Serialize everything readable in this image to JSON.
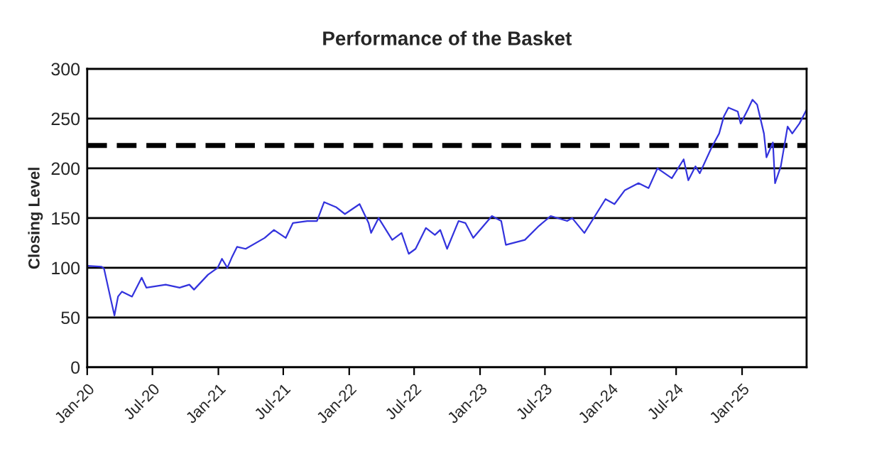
{
  "chart_data": {
    "type": "line",
    "title": "Performance of the Basket",
    "ylabel": "Closing Level",
    "xlim": [
      "2020-01-01",
      "2025-06-30"
    ],
    "xticks": [
      {
        "value": "2020-01-01",
        "label": "Jan-20"
      },
      {
        "value": "2020-07-01",
        "label": "Jul-20"
      },
      {
        "value": "2021-01-01",
        "label": "Jan-21"
      },
      {
        "value": "2021-07-01",
        "label": "Jul-21"
      },
      {
        "value": "2022-01-01",
        "label": "Jan-22"
      },
      {
        "value": "2022-07-01",
        "label": "Jul-22"
      },
      {
        "value": "2023-01-01",
        "label": "Jan-23"
      },
      {
        "value": "2023-07-01",
        "label": "Jul-23"
      },
      {
        "value": "2024-01-01",
        "label": "Jan-24"
      },
      {
        "value": "2024-07-01",
        "label": "Jul-24"
      },
      {
        "value": "2025-01-01",
        "label": "Jan-25"
      }
    ],
    "ylim": [
      0,
      300
    ],
    "yticks": [
      0,
      50,
      100,
      150,
      200,
      250,
      300
    ],
    "grid": "y",
    "legend": false,
    "marker": "none",
    "line_style": "solid",
    "ref_lines": [
      {
        "axis": "y",
        "value": 223,
        "label": null,
        "color": "#000000",
        "line_style": "dashed"
      }
    ],
    "series": [
      {
        "color": "#3333dd",
        "x": [
          "2020-01-01",
          "2020-02-10",
          "2020-02-17",
          "2020-03-07",
          "2020-03-17",
          "2020-03-27",
          "2020-04-07",
          "2020-05-05",
          "2020-06-01",
          "2020-06-14",
          "2020-08-07",
          "2020-09-15",
          "2020-10-12",
          "2020-10-25",
          "2020-12-03",
          "2020-12-30",
          "2021-01-11",
          "2021-01-26",
          "2021-02-07",
          "2021-02-22",
          "2021-03-18",
          "2021-05-10",
          "2021-06-05",
          "2021-07-08",
          "2021-07-28",
          "2021-09-06",
          "2021-10-03",
          "2021-10-23",
          "2021-11-25",
          "2021-12-20",
          "2022-01-30",
          "2022-02-24",
          "2022-03-03",
          "2022-03-24",
          "2022-05-01",
          "2022-05-27",
          "2022-06-16",
          "2022-07-05",
          "2022-08-03",
          "2022-08-28",
          "2022-09-12",
          "2022-10-01",
          "2022-11-02",
          "2022-11-21",
          "2022-12-13",
          "2023-02-03",
          "2023-03-01",
          "2023-03-14",
          "2023-05-06",
          "2023-06-14",
          "2023-07-17",
          "2023-09-01",
          "2023-09-15",
          "2023-10-19",
          "2023-11-21",
          "2023-12-17",
          "2024-01-11",
          "2024-02-09",
          "2024-03-18",
          "2024-04-15",
          "2024-05-10",
          "2024-06-19",
          "2024-07-22",
          "2024-08-04",
          "2024-08-24",
          "2024-09-05",
          "2024-10-08",
          "2024-10-29",
          "2024-11-11",
          "2024-11-24",
          "2024-12-20",
          "2024-12-28",
          "2025-01-17",
          "2025-01-30",
          "2025-02-12",
          "2025-03-03",
          "2025-03-10",
          "2025-03-28",
          "2025-04-03",
          "2025-04-19",
          "2025-05-08",
          "2025-05-21",
          "2025-06-10",
          "2025-06-30"
        ],
        "values": [
          102,
          101,
          99,
          68,
          52,
          71,
          76,
          71,
          90,
          80,
          83,
          80,
          83,
          78,
          93,
          100,
          109,
          100,
          110,
          121,
          119,
          130,
          138,
          130,
          145,
          147,
          147,
          166,
          161,
          154,
          164,
          145,
          135,
          150,
          128,
          135,
          114,
          119,
          140,
          133,
          138,
          119,
          147,
          145,
          130,
          152,
          147,
          123,
          128,
          142,
          152,
          147,
          150,
          135,
          154,
          169,
          164,
          178,
          185,
          180,
          200,
          190,
          209,
          188,
          202,
          195,
          221,
          235,
          252,
          261,
          257,
          245,
          259,
          269,
          264,
          235,
          211,
          226,
          185,
          202,
          242,
          235,
          245,
          259
        ]
      }
    ]
  }
}
